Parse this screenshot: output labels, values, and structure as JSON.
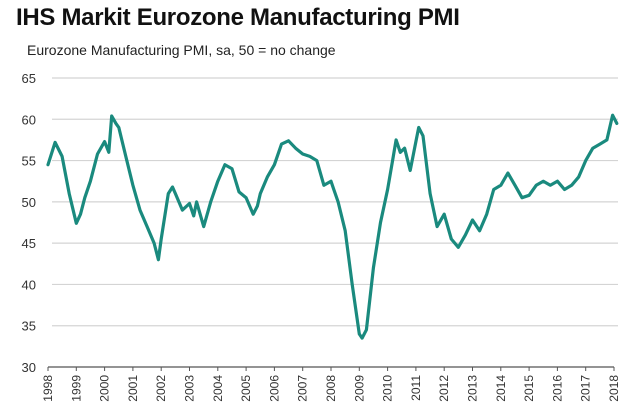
{
  "chart_data": {
    "type": "line",
    "title": "IHS Markit Eurozone Manufacturing PMI",
    "subtitle": "Eurozone Manufacturing PMI, sa, 50 = no change",
    "xlabel": "",
    "ylabel": "",
    "ylim": [
      30,
      65
    ],
    "xlim": [
      1998,
      2018.25
    ],
    "grid": true,
    "line_color": "#1a8a7e",
    "y_ticks": [
      "30",
      "35",
      "40",
      "45",
      "50",
      "55",
      "60",
      "65"
    ],
    "x_ticks": [
      "1998",
      "1999",
      "2000",
      "2001",
      "2002",
      "2003",
      "2004",
      "2005",
      "2006",
      "2007",
      "2008",
      "2009",
      "2010",
      "2011",
      "2012",
      "2013",
      "2014",
      "2015",
      "2016",
      "2017",
      "2018"
    ],
    "series": [
      {
        "name": "Eurozone Manufacturing PMI",
        "x": [
          1998.0,
          1998.25,
          1998.5,
          1998.75,
          1999.0,
          1999.15,
          1999.3,
          1999.5,
          1999.75,
          2000.0,
          2000.15,
          2000.25,
          2000.4,
          2000.5,
          2000.75,
          2001.0,
          2001.25,
          2001.5,
          2001.75,
          2001.9,
          2002.0,
          2002.25,
          2002.4,
          2002.5,
          2002.75,
          2003.0,
          2003.15,
          2003.25,
          2003.5,
          2003.75,
          2004.0,
          2004.25,
          2004.5,
          2004.75,
          2005.0,
          2005.25,
          2005.4,
          2005.5,
          2005.75,
          2006.0,
          2006.25,
          2006.5,
          2006.75,
          2007.0,
          2007.25,
          2007.5,
          2007.75,
          2008.0,
          2008.1,
          2008.25,
          2008.5,
          2008.75,
          2009.0,
          2009.1,
          2009.25,
          2009.5,
          2009.75,
          2010.0,
          2010.2,
          2010.3,
          2010.45,
          2010.6,
          2010.8,
          2011.0,
          2011.1,
          2011.25,
          2011.5,
          2011.75,
          2012.0,
          2012.25,
          2012.5,
          2012.75,
          2013.0,
          2013.25,
          2013.5,
          2013.75,
          2014.0,
          2014.25,
          2014.5,
          2014.75,
          2015.0,
          2015.25,
          2015.5,
          2015.75,
          2016.0,
          2016.25,
          2016.5,
          2016.75,
          2017.0,
          2017.25,
          2017.5,
          2017.75,
          2017.95,
          2018.1
        ],
        "values": [
          54.5,
          57.2,
          55.5,
          51.0,
          47.4,
          48.5,
          50.5,
          52.5,
          55.8,
          57.3,
          56.0,
          60.4,
          59.5,
          59.0,
          55.5,
          52.0,
          49.0,
          47.0,
          45.0,
          43.0,
          45.5,
          51.0,
          51.8,
          51.0,
          49.0,
          49.8,
          48.3,
          50.0,
          47.0,
          50.0,
          52.5,
          54.5,
          54.0,
          51.2,
          50.5,
          48.5,
          49.5,
          51.0,
          53.0,
          54.5,
          57.0,
          57.4,
          56.5,
          55.8,
          55.5,
          55.0,
          52.0,
          52.5,
          51.5,
          50.0,
          46.5,
          40.0,
          34.0,
          33.5,
          34.5,
          42.0,
          47.5,
          51.5,
          55.5,
          57.5,
          56.0,
          56.5,
          53.8,
          57.3,
          59.0,
          58.0,
          51.0,
          47.0,
          48.5,
          45.5,
          44.5,
          46.0,
          47.8,
          46.5,
          48.5,
          51.5,
          52.0,
          53.5,
          52.0,
          50.5,
          50.8,
          52.0,
          52.5,
          52.0,
          52.5,
          51.5,
          52.0,
          53.0,
          55.0,
          56.5,
          57.0,
          57.5,
          60.5,
          59.5
        ]
      }
    ]
  }
}
